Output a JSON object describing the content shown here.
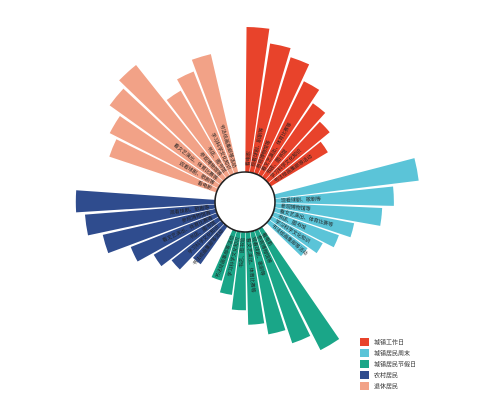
{
  "chart_data": {
    "type": "radial_bar",
    "title": "",
    "legend_position": "bottom-right",
    "groups": [
      {
        "name": "城镇工作日",
        "color": "#e8432b",
        "items": [
          {
            "label": "看电影",
            "value": 100
          },
          {
            "label": "现看球剧、剧剧等",
            "value": 90
          },
          {
            "label": "参观博物馆等",
            "value": 84
          },
          {
            "label": "看文艺演出、体育比赛等",
            "value": 72
          },
          {
            "label": "书店、图书馆",
            "value": 62
          },
          {
            "label": "学习科学文化知识",
            "value": 55
          },
          {
            "label": "书法绘画集邮等活动",
            "value": 46
          }
        ]
      },
      {
        "name": "城镇居民周末",
        "color": "#5bc4d8",
        "items": [
          {
            "label": "",
            "value": 100
          },
          {
            "label": "现看球剧、歌剧等",
            "value": 82
          },
          {
            "label": "参观博物馆等",
            "value": 74
          },
          {
            "label": "看文艺演出、体育比赛等",
            "value": 56
          },
          {
            "label": "书店、图书馆",
            "value": 48
          },
          {
            "label": "学习科学文化知识",
            "value": 40
          },
          {
            "label": "书法绘画集邮等活动",
            "value": 33
          }
        ]
      },
      {
        "name": "城镇居民节假日",
        "color": "#1aa688",
        "items": [
          {
            "label": "看电影",
            "value": 94
          },
          {
            "label": "参观博物馆等",
            "value": 82
          },
          {
            "label": "现看球剧、歌剧等",
            "value": 72
          },
          {
            "label": "看文艺演出、体育比赛等",
            "value": 64
          },
          {
            "label": "书店、图书馆",
            "value": 54
          },
          {
            "label": "学习科学文化知识",
            "value": 44
          },
          {
            "label": "书法绘画集邮等活动",
            "value": 36
          }
        ]
      },
      {
        "name": "农村居民",
        "color": "#2f4c8e",
        "items": [
          {
            "label": "书法绘画集邮等活动",
            "value": 32
          },
          {
            "label": "学习科学文化知识",
            "value": 44
          },
          {
            "label": "书店、图书馆",
            "value": 52
          },
          {
            "label": "看文艺演出、体育比赛等",
            "value": 64
          },
          {
            "label": "参观博物馆等",
            "value": 80
          },
          {
            "label": "观看球剧、歌剧等",
            "value": 90
          },
          {
            "label": "",
            "value": 96
          }
        ]
      },
      {
        "name": "退休居民",
        "color": "#f2a287",
        "items": [
          {
            "label": "看电影",
            "value": 78
          },
          {
            "label": "观看球剧、歌剧等",
            "value": 84
          },
          {
            "label": "看文艺演出、体育比赛等",
            "value": 94
          },
          {
            "label": "参观博物馆等",
            "value": 100
          },
          {
            "label": "书店、图书馆",
            "value": 68
          },
          {
            "label": "学习科学文化知识",
            "value": 76
          },
          {
            "label": "书法绘画集邮等活动",
            "value": 84
          }
        ]
      }
    ]
  }
}
